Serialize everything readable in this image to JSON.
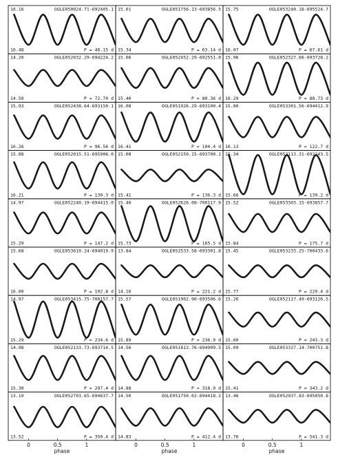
{
  "chart_data": [
    {
      "type": "line",
      "title": "OGLE050024.71-692405.1",
      "period": "P = 40.15 d",
      "ylim": [
        16.48,
        16.16
      ],
      "yticks": [
        16.16,
        16.48
      ],
      "xlim": [
        -0.35,
        1.5
      ],
      "x": [
        -0.25,
        0,
        0.25,
        0.5,
        0.75,
        1,
        1.25,
        1.5
      ],
      "values": [
        16.22,
        16.42,
        16.22,
        16.42,
        16.22,
        16.42,
        16.22,
        16.42
      ]
    },
    {
      "type": "line",
      "title": "OGLE051756.13-693856.5",
      "period": "P = 63.14 d",
      "ylim": [
        15.34,
        15.01
      ],
      "yticks": [
        15.01,
        15.34
      ],
      "xlim": [
        -0.35,
        1.5
      ],
      "x": [
        -0.25,
        0,
        0.25,
        0.5,
        0.75,
        1,
        1.25,
        1.5
      ],
      "values": [
        15.1,
        15.26,
        15.1,
        15.26,
        15.1,
        15.26,
        15.1,
        15.26
      ]
    },
    {
      "type": "line",
      "title": "OGLE053240.18-695524.7",
      "period": "P = 67.61 d",
      "ylim": [
        16.07,
        15.75
      ],
      "yticks": [
        15.75,
        16.07
      ],
      "xlim": [
        -0.35,
        1.5
      ],
      "x": [
        -0.25,
        0,
        0.25,
        0.5,
        0.75,
        1,
        1.25,
        1.5
      ],
      "values": [
        15.81,
        16.01,
        15.81,
        16.01,
        15.81,
        16.01,
        15.81,
        16.01
      ]
    },
    {
      "type": "line",
      "title": "OGLE052032.29-694224.2",
      "period": "P = 72.70 d",
      "ylim": [
        14.5,
        14.2
      ],
      "yticks": [
        {
          "value": 14.2,
          "label": "14.20"
        },
        {
          "value": 14.5,
          "label": "14.50"
        }
      ],
      "xlim": [
        -0.35,
        1.5
      ],
      "x": [
        -0.25,
        0,
        0.25,
        0.5,
        0.75,
        1,
        1.25,
        1.5
      ],
      "values": [
        14.3,
        14.4,
        14.3,
        14.4,
        14.3,
        14.4,
        14.3,
        14.4
      ]
    },
    {
      "type": "line",
      "title": "OGLE052452.29-692551.0",
      "period": "P = 80.36 d",
      "ylim": [
        15.4,
        15.06
      ],
      "yticks": [
        15.06,
        {
          "value": 15.4,
          "label": "15.40"
        }
      ],
      "xlim": [
        -0.35,
        1.5
      ],
      "x": [
        -0.25,
        0,
        0.25,
        0.5,
        0.75,
        1,
        1.25,
        1.5
      ],
      "values": [
        15.16,
        15.3,
        15.16,
        15.3,
        15.16,
        15.3,
        15.16,
        15.3
      ]
    },
    {
      "type": "line",
      "title": "OGLE052327.66-693728.2",
      "period": "P = 88.73 d",
      "ylim": [
        16.29,
        15.96
      ],
      "yticks": [
        15.96,
        16.29
      ],
      "xlim": [
        -0.35,
        1.5
      ],
      "x": [
        -0.25,
        0,
        0.25,
        0.5,
        0.75,
        1,
        1.25,
        1.5
      ],
      "values": [
        16.02,
        16.24,
        16.02,
        16.24,
        16.02,
        16.24,
        16.02,
        16.24
      ]
    },
    {
      "type": "line",
      "title": "OGLE052438.64-693150.1",
      "period": "P = 96.56 d",
      "ylim": [
        16.26,
        15.93
      ],
      "yticks": [
        15.93,
        16.26
      ],
      "xlim": [
        -0.35,
        1.5
      ],
      "x": [
        -0.25,
        0,
        0.25,
        0.5,
        0.75,
        1,
        1.25,
        1.5
      ],
      "values": [
        16.02,
        16.18,
        16.02,
        16.18,
        16.02,
        16.18,
        16.02,
        16.18
      ]
    },
    {
      "type": "line",
      "title": "OGLE051926.29-693100.4",
      "period": "P = 104.4 d",
      "ylim": [
        16.41,
        16.08
      ],
      "yticks": [
        16.08,
        16.41
      ],
      "xlim": [
        -0.35,
        1.5
      ],
      "x": [
        -0.25,
        0,
        0.25,
        0.5,
        0.75,
        1,
        1.25,
        1.5
      ],
      "values": [
        16.15,
        16.35,
        16.15,
        16.35,
        16.15,
        16.35,
        16.15,
        16.35
      ]
    },
    {
      "type": "line",
      "title": "OGLE053301.56-694412.9",
      "period": "P = 122.7 d",
      "ylim": [
        16.13,
        15.8
      ],
      "yticks": [
        {
          "value": 15.8,
          "label": "15.80"
        },
        16.13
      ],
      "xlim": [
        -0.35,
        1.5
      ],
      "x": [
        -0.25,
        0,
        0.25,
        0.5,
        0.75,
        1,
        1.25,
        1.5
      ],
      "values": [
        15.9,
        16.04,
        15.9,
        16.04,
        15.9,
        16.04,
        15.9,
        16.04
      ]
    },
    {
      "type": "line",
      "title": "OGLE052015.51-695906.0",
      "period": "P = 130.3 d",
      "ylim": [
        16.21,
        15.88
      ],
      "yticks": [
        15.88,
        16.21
      ],
      "xlim": [
        -0.35,
        1.5
      ],
      "x": [
        -0.25,
        0,
        0.25,
        0.5,
        0.75,
        1,
        1.25,
        1.5
      ],
      "values": [
        15.96,
        16.14,
        15.96,
        16.14,
        15.96,
        16.14,
        15.96,
        16.14
      ]
    },
    {
      "type": "line",
      "title": "OGLE052150.15-693700.1",
      "period": "P = 136.3 d",
      "ylim": [
        15.41,
        15.08
      ],
      "yticks": [
        15.08,
        15.41
      ],
      "xlim": [
        -0.35,
        1.5
      ],
      "x": [
        -0.25,
        0,
        0.25,
        0.5,
        0.75,
        1,
        1.25,
        1.5
      ],
      "values": [
        15.21,
        15.29,
        15.21,
        15.29,
        15.21,
        15.29,
        15.21,
        15.29
      ]
    },
    {
      "type": "line",
      "title": "OGLE052113.31-692243.5",
      "period": "P = 139.2 d",
      "ylim": [
        15.66,
        15.34
      ],
      "yticks": [
        15.34,
        15.66
      ],
      "xlim": [
        -0.35,
        1.5
      ],
      "x": [
        -0.25,
        0,
        0.25,
        0.5,
        0.75,
        1,
        1.25,
        1.5
      ],
      "values": [
        15.37,
        15.63,
        15.37,
        15.63,
        15.37,
        15.63,
        15.37,
        15.63
      ]
    },
    {
      "type": "line",
      "title": "OGLE052240.19-694415.0",
      "period": "P = 147.2 d",
      "ylim": [
        15.29,
        14.97
      ],
      "yticks": [
        14.97,
        15.29
      ],
      "xlim": [
        -0.35,
        1.5
      ],
      "x": [
        -0.25,
        0,
        0.25,
        0.5,
        0.75,
        1,
        1.25,
        1.5
      ],
      "values": [
        15.06,
        15.2,
        15.06,
        15.2,
        15.06,
        15.2,
        15.06,
        15.2
      ]
    },
    {
      "type": "line",
      "title": "OGLE052626.08-700117.9",
      "period": "P = 165.5 d",
      "ylim": [
        15.73,
        15.4
      ],
      "yticks": [
        {
          "value": 15.4,
          "label": "15.40"
        },
        15.73
      ],
      "xlim": [
        -0.35,
        1.5
      ],
      "x": [
        -0.25,
        0,
        0.25,
        0.5,
        0.75,
        1,
        1.25,
        1.5
      ],
      "values": [
        15.45,
        15.69,
        15.45,
        15.69,
        15.45,
        15.69,
        15.45,
        15.69
      ]
    },
    {
      "type": "line",
      "title": "OGLE053303.15-693857.7",
      "period": "P = 175.7 d",
      "ylim": [
        15.84,
        15.52
      ],
      "yticks": [
        15.52,
        15.84
      ],
      "xlim": [
        -0.35,
        1.5
      ],
      "x": [
        -0.25,
        0,
        0.25,
        0.5,
        0.75,
        1,
        1.25,
        1.5
      ],
      "values": [
        15.62,
        15.74,
        15.62,
        15.74,
        15.62,
        15.74,
        15.62,
        15.74
      ]
    },
    {
      "type": "line",
      "title": "OGLE053610.24-694019.9",
      "period": "P = 192.8 d",
      "ylim": [
        16,
        15.68
      ],
      "yticks": [
        15.68,
        {
          "value": 16,
          "label": "16.00"
        }
      ],
      "xlim": [
        -0.35,
        1.5
      ],
      "x": [
        -0.25,
        0,
        0.25,
        0.5,
        0.75,
        1,
        1.25,
        1.5
      ],
      "values": [
        15.79,
        15.89,
        15.79,
        15.89,
        15.79,
        15.89,
        15.79,
        15.89
      ]
    },
    {
      "type": "line",
      "title": "OGLE052533.58-693301.8",
      "period": "P = 221.2 d",
      "ylim": [
        14.16,
        13.84
      ],
      "yticks": [
        13.84,
        14.16
      ],
      "xlim": [
        -0.35,
        1.5
      ],
      "x": [
        -0.25,
        0,
        0.25,
        0.5,
        0.75,
        1,
        1.25,
        1.5
      ],
      "values": [
        13.96,
        14.04,
        13.96,
        14.04,
        13.96,
        14.04,
        13.96,
        14.04
      ]
    },
    {
      "type": "line",
      "title": "OGLE053233.25-700433.6",
      "period": "P = 229.4 d",
      "ylim": [
        15.77,
        15.45
      ],
      "yticks": [
        15.45,
        15.77
      ],
      "xlim": [
        -0.35,
        1.5
      ],
      "x": [
        -0.25,
        0,
        0.25,
        0.5,
        0.75,
        1,
        1.25,
        1.5
      ],
      "values": [
        15.57,
        15.65,
        15.57,
        15.65,
        15.57,
        15.65,
        15.57,
        15.65
      ]
    },
    {
      "type": "line",
      "title": "OGLE053415.75-700157.7",
      "period": "P = 234.6 d",
      "ylim": [
        15.29,
        14.97
      ],
      "yticks": [
        14.97,
        15.29
      ],
      "xlim": [
        -0.35,
        1.5
      ],
      "x": [
        -0.25,
        0,
        0.25,
        0.5,
        0.75,
        1,
        1.25,
        1.5
      ],
      "values": [
        15.01,
        15.25,
        15.01,
        15.25,
        15.01,
        15.25,
        15.01,
        15.25
      ]
    },
    {
      "type": "line",
      "title": "OGLE051902.90-693506.6",
      "period": "P = 236.9 d",
      "ylim": [
        15.89,
        15.57
      ],
      "yticks": [
        15.57,
        15.89
      ],
      "xlim": [
        -0.35,
        1.5
      ],
      "x": [
        -0.25,
        0,
        0.25,
        0.5,
        0.75,
        1,
        1.25,
        1.5
      ],
      "values": [
        15.63,
        15.83,
        15.63,
        15.83,
        15.63,
        15.83,
        15.63,
        15.83
      ]
    },
    {
      "type": "line",
      "title": "OGLE052117.49-693126.5",
      "period": "P = 243.3 d",
      "ylim": [
        15.6,
        15.26
      ],
      "yticks": [
        15.26,
        {
          "value": 15.6,
          "label": "15.60"
        }
      ],
      "xlim": [
        -0.35,
        1.5
      ],
      "x": [
        -0.25,
        0,
        0.25,
        0.5,
        0.75,
        1,
        1.25,
        1.5
      ],
      "values": [
        15.38,
        15.48,
        15.38,
        15.48,
        15.38,
        15.48,
        15.38,
        15.48
      ]
    },
    {
      "type": "line",
      "title": "OGLE052133.73-693714.5",
      "period": "P = 297.4 d",
      "ylim": [
        15.3,
        14.98
      ],
      "yticks": [
        14.98,
        {
          "value": 15.3,
          "label": "15.30"
        }
      ],
      "xlim": [
        -0.35,
        1.5
      ],
      "x": [
        -0.25,
        0,
        0.25,
        0.5,
        0.75,
        1,
        1.25,
        1.5
      ],
      "values": [
        15.06,
        15.22,
        15.06,
        15.22,
        15.06,
        15.22,
        15.06,
        15.22
      ]
    },
    {
      "type": "line",
      "title": "OGLE051813.76-694909.5",
      "period": "P = 318.9 d",
      "ylim": [
        14.88,
        14.56
      ],
      "yticks": [
        14.56,
        14.88
      ],
      "xlim": [
        -0.35,
        1.5
      ],
      "x": [
        -0.25,
        0,
        0.25,
        0.5,
        0.75,
        1,
        1.25,
        1.5
      ],
      "values": [
        14.64,
        14.8,
        14.64,
        14.8,
        14.64,
        14.8,
        14.64,
        14.8
      ]
    },
    {
      "type": "line",
      "title": "OGLE053327.14-700751.8",
      "period": "P = 343.2 d",
      "ylim": [
        15.41,
        15.09
      ],
      "yticks": [
        15.09,
        15.41
      ],
      "xlim": [
        -0.35,
        1.5
      ],
      "x": [
        -0.25,
        0,
        0.25,
        0.5,
        0.75,
        1,
        1.25,
        1.5
      ],
      "values": [
        15.21,
        15.29,
        15.21,
        15.29,
        15.21,
        15.29,
        15.21,
        15.29
      ]
    },
    {
      "type": "line",
      "title": "OGLE052703.65-694637.7",
      "period": "P = 350.4 d",
      "ylim": [
        13.52,
        13.19
      ],
      "yticks": [
        13.19,
        13.52
      ],
      "xlim": [
        -0.35,
        1.5
      ],
      "xticks": [
        0,
        0.5,
        1
      ],
      "xlabel": "phase",
      "x": [
        -0.25,
        0,
        0.25,
        0.5,
        0.75,
        1,
        1.25,
        1.5
      ],
      "values": [
        13.29,
        13.43,
        13.29,
        13.43,
        13.29,
        13.43,
        13.29,
        13.43
      ]
    },
    {
      "type": "line",
      "title": "OGLE051750.02-694418.2",
      "period": "P = 412.4 d",
      "ylim": [
        14.83,
        14.5
      ],
      "yticks": [
        {
          "value": 14.5,
          "label": "14.50"
        },
        14.83
      ],
      "xlim": [
        -0.35,
        1.5
      ],
      "xticks": [
        0,
        0.5,
        1
      ],
      "xlabel": "phase",
      "x": [
        -0.25,
        0,
        0.25,
        0.5,
        0.75,
        1,
        1.25,
        1.5
      ],
      "values": [
        14.61,
        14.73,
        14.61,
        14.73,
        14.61,
        14.73,
        14.61,
        14.73
      ]
    },
    {
      "type": "line",
      "title": "OGLE052937.83-695050.8",
      "period": "P = 541.3 d",
      "ylim": [
        13.76,
        13.46
      ],
      "yticks": [
        13.46,
        13.76
      ],
      "xlim": [
        -0.35,
        1.5
      ],
      "xticks": [
        0,
        0.5,
        1
      ],
      "xlabel": "phase",
      "x": [
        -0.25,
        0,
        0.25,
        0.5,
        0.75,
        1,
        1.25,
        1.5
      ],
      "values": [
        13.57,
        13.65,
        13.57,
        13.65,
        13.57,
        13.65,
        13.57,
        13.65
      ]
    }
  ]
}
